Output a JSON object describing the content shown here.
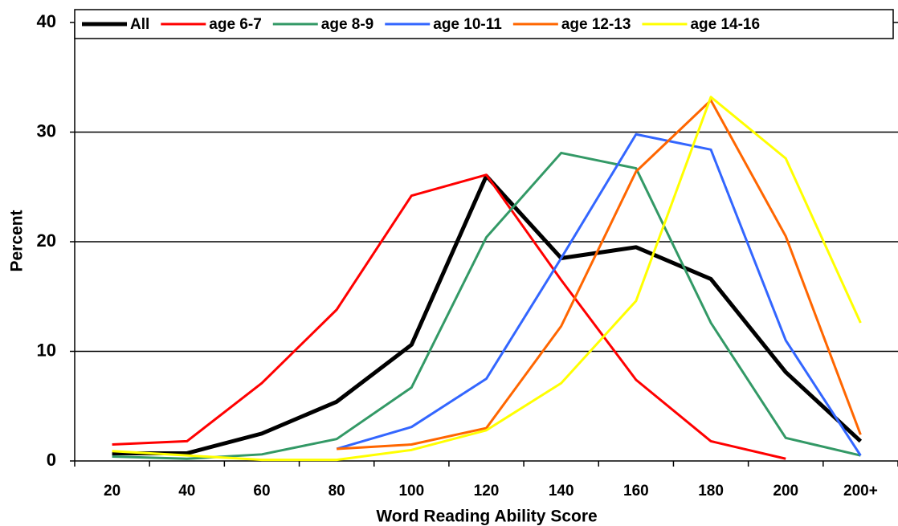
{
  "chart_data": {
    "type": "line",
    "xlabel": "Word Reading Ability Score",
    "ylabel": "Percent",
    "categories": [
      "20",
      "40",
      "60",
      "80",
      "100",
      "120",
      "140",
      "160",
      "180",
      "200",
      "200+"
    ],
    "series": [
      {
        "name": "All",
        "color": "#000000",
        "width": 5,
        "values": [
          0.7,
          0.7,
          2.5,
          5.4,
          10.6,
          26.0,
          18.5,
          19.5,
          16.6,
          8.1,
          1.8
        ]
      },
      {
        "name": "age 6-7",
        "color": "#ff0000",
        "width": 3,
        "values": [
          1.5,
          1.8,
          7.1,
          13.8,
          24.2,
          26.1,
          16.5,
          7.4,
          1.8,
          0.2,
          null
        ]
      },
      {
        "name": "age 8-9",
        "color": "#339966",
        "width": 3,
        "values": [
          0.4,
          0.2,
          0.6,
          2.0,
          6.7,
          20.4,
          28.1,
          26.7,
          12.6,
          2.1,
          0.5
        ]
      },
      {
        "name": "age 10-11",
        "color": "#3366ff",
        "width": 3,
        "values": [
          null,
          null,
          null,
          1.1,
          3.1,
          7.5,
          18.5,
          29.8,
          28.4,
          11.0,
          0.5
        ]
      },
      {
        "name": "age 12-13",
        "color": "#ff6600",
        "width": 3,
        "values": [
          null,
          null,
          null,
          1.1,
          1.5,
          3.0,
          12.3,
          26.4,
          32.9,
          20.5,
          2.4
        ]
      },
      {
        "name": "age 14-16",
        "color": "#ffff00",
        "width": 3,
        "values": [
          0.9,
          0.5,
          0.1,
          0.1,
          1.0,
          2.8,
          7.1,
          14.6,
          33.2,
          27.6,
          12.6
        ]
      }
    ],
    "ylim": [
      0,
      40
    ],
    "yticks": [
      0,
      10,
      20,
      30,
      40
    ],
    "grid": true,
    "legend": "top"
  }
}
